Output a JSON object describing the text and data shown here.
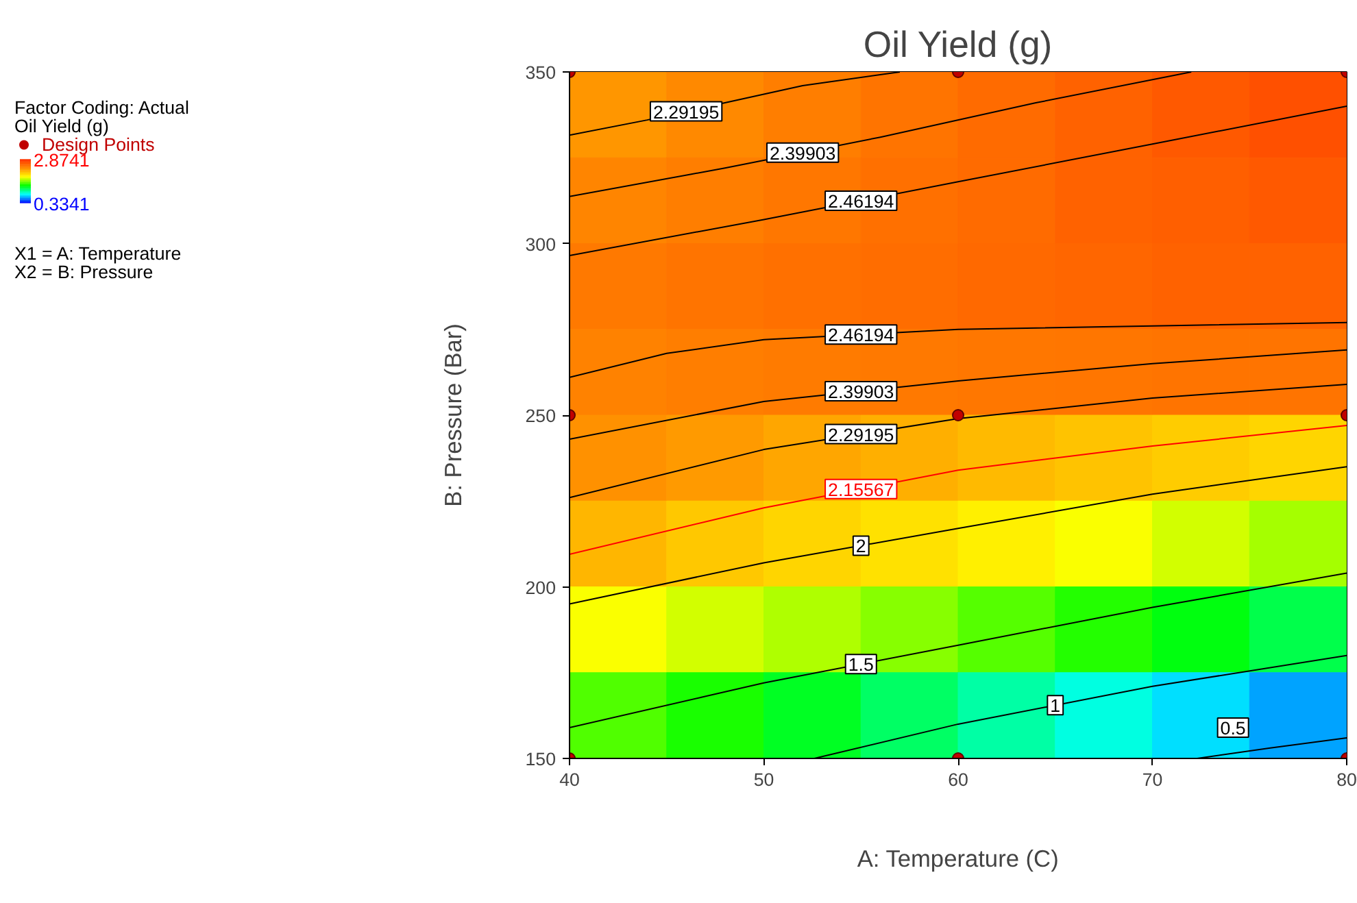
{
  "chart_data": {
    "type": "heatmap",
    "title": "Oil Yield (g)",
    "xlabel": "A: Temperature (C)",
    "ylabel": "B: Pressure (Bar)",
    "xlim": [
      40,
      80
    ],
    "ylim": [
      150,
      350
    ],
    "xticks": [
      40,
      50,
      60,
      70,
      80
    ],
    "yticks": [
      150,
      200,
      250,
      300,
      350
    ],
    "clabel": "Oil Yield (g)",
    "clim": [
      0.3341,
      2.8741
    ],
    "cticks": [
      0.3341,
      2.8741
    ],
    "legend": "left",
    "annotations": [
      "Factor Coding: Actual",
      "X1 = A: Temperature",
      "X2 = B: Pressure"
    ],
    "cells": [
      [
        2.32,
        2.38,
        2.44,
        2.5,
        2.55,
        2.6,
        2.65,
        2.7
      ],
      [
        2.4,
        2.44,
        2.48,
        2.52,
        2.55,
        2.6,
        2.62,
        2.65
      ],
      [
        2.47,
        2.5,
        2.52,
        2.54,
        2.56,
        2.58,
        2.6,
        2.6
      ],
      [
        2.42,
        2.44,
        2.46,
        2.47,
        2.48,
        2.49,
        2.5,
        2.5
      ],
      [
        2.34,
        2.3,
        2.25,
        2.21,
        2.16,
        2.12,
        2.08,
        2.04
      ],
      [
        2.18,
        2.1,
        2.04,
        1.99,
        1.92,
        1.85,
        1.77,
        1.68
      ],
      [
        1.85,
        1.77,
        1.7,
        1.62,
        1.52,
        1.42,
        1.32,
        1.2
      ],
      [
        1.51,
        1.4,
        1.28,
        1.15,
        1.02,
        0.9,
        0.78,
        0.66
      ]
    ],
    "series": [
      {
        "type": "line",
        "name": "2.29195",
        "color": "#000000",
        "x": [
          40,
          44,
          48,
          52,
          57
        ],
        "values": [
          331.6,
          336,
          341,
          346,
          350
        ]
      },
      {
        "type": "line",
        "name": "2.39903",
        "color": "#000000",
        "x": [
          40,
          48,
          56,
          64,
          72
        ],
        "values": [
          313.7,
          322,
          331,
          341,
          350
        ]
      },
      {
        "type": "line",
        "name": "2.46194",
        "color": "#000000",
        "x": [
          40,
          50,
          60,
          70,
          80
        ],
        "values": [
          296.5,
          307,
          318,
          329,
          340
        ]
      },
      {
        "type": "line",
        "name": "2.46194",
        "color": "#000000",
        "x": [
          40,
          45,
          50,
          60,
          70,
          80
        ],
        "values": [
          261,
          268,
          272,
          275,
          276,
          277
        ]
      },
      {
        "type": "line",
        "name": "2.39903",
        "color": "#000000",
        "x": [
          40,
          50,
          60,
          70,
          80
        ],
        "values": [
          243,
          254,
          260,
          265,
          269
        ]
      },
      {
        "type": "line",
        "name": "2.29195",
        "color": "#000000",
        "x": [
          40,
          50,
          60,
          70,
          80
        ],
        "values": [
          226,
          240,
          249,
          255,
          259
        ]
      },
      {
        "type": "line",
        "name": "2.15567",
        "color": "#ff0000",
        "x": [
          40,
          50,
          60,
          70,
          80
        ],
        "values": [
          209.5,
          223,
          234,
          241,
          247
        ]
      },
      {
        "type": "line",
        "name": "2",
        "color": "#000000",
        "x": [
          40,
          50,
          60,
          70,
          80
        ],
        "values": [
          195,
          207,
          217,
          227,
          235
        ]
      },
      {
        "type": "line",
        "name": "1.5",
        "color": "#000000",
        "x": [
          40,
          50,
          60,
          70,
          80
        ],
        "values": [
          159,
          172,
          183,
          194,
          204
        ]
      },
      {
        "type": "line",
        "name": "1",
        "color": "#000000",
        "x": [
          52.6,
          60,
          70,
          80
        ],
        "values": [
          150,
          160,
          171,
          180
        ]
      },
      {
        "type": "line",
        "name": "0.5",
        "color": "#000000",
        "x": [
          72.3,
          76,
          80
        ],
        "values": [
          150,
          153,
          156
        ]
      },
      {
        "type": "scatter",
        "name": "Design Points",
        "color": "#c00000",
        "marker": "circle",
        "x": [
          40,
          60,
          80,
          40,
          60,
          80,
          40,
          60,
          80
        ],
        "values": [
          350,
          350,
          350,
          250,
          250,
          250,
          150,
          150,
          150
        ]
      }
    ]
  }
}
